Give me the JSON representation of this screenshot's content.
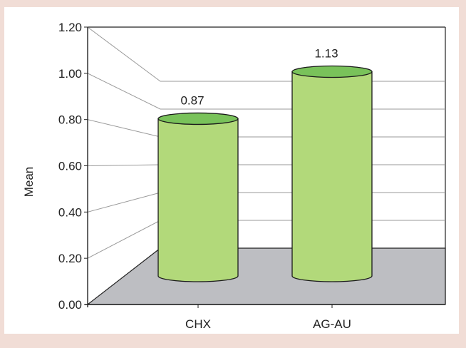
{
  "chart_data": {
    "type": "bar",
    "style": "3d-cylinder",
    "categories": [
      "CHX",
      "AG-AU"
    ],
    "values": [
      0.87,
      1.13
    ],
    "data_labels": [
      "0.87",
      "1.13"
    ],
    "title": "",
    "xlabel": "",
    "ylabel": "Mean",
    "ylim": [
      0,
      1.2
    ],
    "yticks": [
      "0.00",
      "0.20",
      "0.40",
      "0.60",
      "0.80",
      "1.00",
      "1.20"
    ],
    "grid": true,
    "legend": "none",
    "colors": {
      "bar_fill": "#b2d97a",
      "bar_top": "#79c25a",
      "bar_stroke": "#1a1a1a",
      "floor": "#bdbec2",
      "plot_background": "#ffffff",
      "page_background": "#f1ddd6"
    }
  }
}
